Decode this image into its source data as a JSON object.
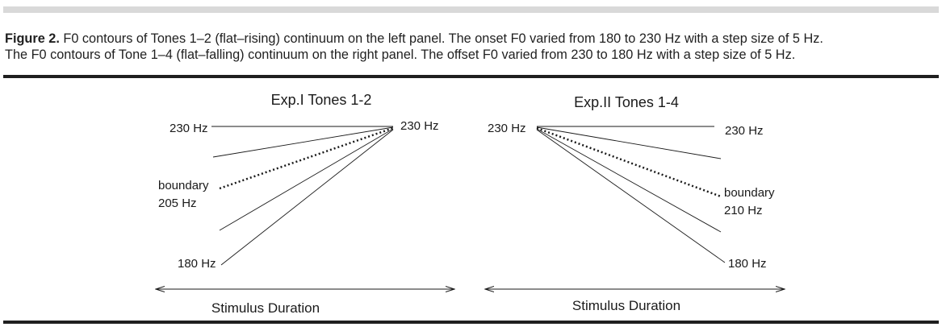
{
  "caption": {
    "label": "Figure 2.",
    "line1": " F0 contours of Tones 1–2 (flat–rising) continuum on the left panel. The onset F0 varied from 180 to 230 Hz with a step size of 5 Hz.",
    "line2": "The F0 contours of Tone 1–4 (flat–falling) continuum on the right panel. The offset F0 varied from 230 to 180 Hz with a step size of 5 Hz."
  },
  "left_panel": {
    "title": "Exp.I Tones 1-2",
    "onset_top_label": "230 Hz",
    "offset_label": "230 Hz",
    "boundary_label": "boundary",
    "boundary_value": "205 Hz",
    "onset_bottom_label": "180 Hz",
    "axis_label": "Stimulus Duration"
  },
  "right_panel": {
    "title": "Exp.II Tones 1-4",
    "onset_label": "230 Hz",
    "offset_top_label": "230 Hz",
    "boundary_label": "boundary",
    "boundary_value": "210 Hz",
    "offset_bottom_label": "180 Hz",
    "axis_label": "Stimulus Duration"
  }
}
